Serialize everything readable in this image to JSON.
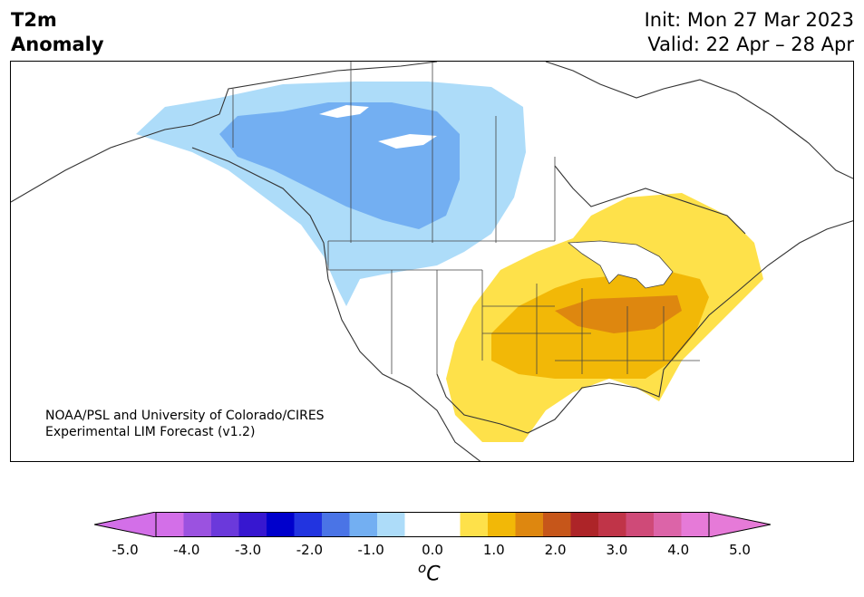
{
  "title": {
    "variable": "T2m",
    "subtitle": "Anomaly",
    "init": "Init: Mon 27 Mar 2023",
    "valid": "Valid: 22 Apr – 28 Apr"
  },
  "credit": {
    "line1": "NOAA/PSL and University of Colorado/CIRES",
    "line2": "Experimental LIM Forecast (v1.2)"
  },
  "colorbar": {
    "unit_prefix": "o",
    "unit": "C",
    "ticks": [
      "-5.0",
      "-4.0",
      "-3.0",
      "-2.0",
      "-1.0",
      "0.0",
      "1.0",
      "2.0",
      "3.0",
      "4.0",
      "5.0"
    ],
    "colors": [
      "#d36fe8",
      "#9b52e0",
      "#6b39db",
      "#3717d0",
      "#0000cc",
      "#2234e0",
      "#4a74e6",
      "#73aff2",
      "#addcf9",
      "#ffffff",
      "#ffffff",
      "#fee14a",
      "#f2b807",
      "#de870f",
      "#c6561a",
      "#ad2428",
      "#c03448",
      "#cf4a78",
      "#dc64a8",
      "#e67ad8"
    ],
    "under_color": "#d36fe8",
    "over_color": "#e67ad8"
  },
  "map": {
    "region": "North America",
    "anomaly_colors": {
      "cool_light": "#addcf9",
      "cool_mid": "#73aff2",
      "warm_light": "#fee14a",
      "warm_mid": "#f2b807",
      "warm_strong": "#de870f"
    }
  }
}
